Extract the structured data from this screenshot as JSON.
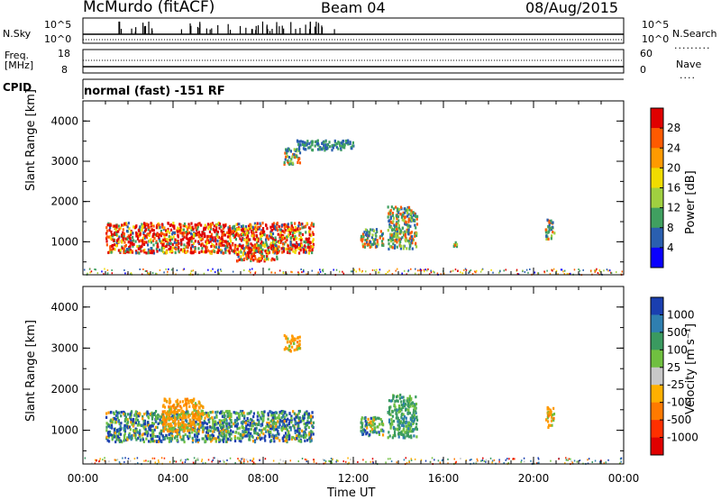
{
  "header": {
    "station": "McMurdo (fitACF)",
    "beam": "Beam 04",
    "date": "08/Aug/2015"
  },
  "info_panels": {
    "nsky_label": "N.Sky",
    "nsky_ticks": [
      "10^5",
      "10^0"
    ],
    "nsearch_label": "N.Search",
    "nsearch_ticks": [
      "10^5",
      "10^0"
    ],
    "freq_label_top": "Freq.",
    "freq_label_bottom": "[MHz]",
    "freq_ticks": [
      "18",
      "8"
    ],
    "nave_label": "Nave",
    "nave_ticks": [
      "60",
      "0"
    ],
    "cpid_label": "CPID",
    "cpid_text": "normal (fast) -151 RF"
  },
  "chart_data": [
    {
      "type": "heatmap",
      "name": "power",
      "ylabel": "Slant Range [km]",
      "xlabel": "Time UT",
      "xlim_hours": [
        0,
        24
      ],
      "ylim_km": [
        180,
        4500
      ],
      "y_ticks": [
        "4000",
        "3000",
        "2000",
        "1000"
      ],
      "x_ticks": [
        "00:00",
        "04:00",
        "08:00",
        "12:00",
        "16:00",
        "20:00",
        "00:00"
      ],
      "colorbar_label": "Power [dB]",
      "colorbar_ticks": [
        "28",
        "24",
        "20",
        "16",
        "12",
        "8",
        "4"
      ],
      "colorbar_colors": [
        "#e00000",
        "#ff5a00",
        "#ff9a00",
        "#f0dc00",
        "#a0d040",
        "#40a060",
        "#2a5fb0",
        "#0a00ff"
      ],
      "patches": [
        {
          "t0": 1.0,
          "t1": 10.2,
          "r0": 750,
          "r1": 1500,
          "level": "strong"
        },
        {
          "t0": 6.8,
          "t1": 8.6,
          "r0": 550,
          "r1": 950,
          "level": "strong"
        },
        {
          "t0": 8.9,
          "t1": 9.6,
          "r0": 2950,
          "r1": 3350,
          "level": "medium"
        },
        {
          "t0": 9.4,
          "t1": 12.0,
          "r0": 3300,
          "r1": 3550,
          "level": "weak"
        },
        {
          "t0": 12.3,
          "t1": 13.3,
          "r0": 900,
          "r1": 1350,
          "level": "medium"
        },
        {
          "t0": 13.5,
          "t1": 14.8,
          "r0": 850,
          "r1": 1900,
          "level": "medium"
        },
        {
          "t0": 16.4,
          "t1": 16.6,
          "r0": 900,
          "r1": 1100,
          "level": "medium"
        },
        {
          "t0": 20.5,
          "t1": 20.9,
          "r0": 1100,
          "r1": 1600,
          "level": "medium"
        }
      ]
    },
    {
      "type": "heatmap",
      "name": "velocity",
      "ylabel": "Slant Range [km]",
      "xlabel": "Time UT",
      "xlim_hours": [
        0,
        24
      ],
      "ylim_km": [
        180,
        4500
      ],
      "y_ticks": [
        "4000",
        "3000",
        "2000",
        "1000"
      ],
      "x_ticks": [
        "00:00",
        "04:00",
        "08:00",
        "12:00",
        "16:00",
        "20:00",
        "00:00"
      ],
      "colorbar_label": "Velocity [m s⁻¹]",
      "colorbar_ticks": [
        "1000",
        "500",
        "100",
        "25",
        "-25",
        "-100",
        "-500",
        "-1000"
      ],
      "colorbar_colors": [
        "#1a3fb0",
        "#2f7fb0",
        "#3a9a60",
        "#70c040",
        "#c8c8c8",
        "#ffb000",
        "#ff7a00",
        "#ff3000",
        "#e00000"
      ],
      "patches": [
        {
          "t0": 1.0,
          "t1": 10.2,
          "r0": 750,
          "r1": 1500,
          "level": "mixed"
        },
        {
          "t0": 3.5,
          "t1": 5.3,
          "r0": 1000,
          "r1": 1800,
          "level": "negative"
        },
        {
          "t0": 8.9,
          "t1": 9.6,
          "r0": 2950,
          "r1": 3350,
          "level": "negative"
        },
        {
          "t0": 12.3,
          "t1": 13.3,
          "r0": 900,
          "r1": 1350,
          "level": "mixed"
        },
        {
          "t0": 13.5,
          "t1": 14.8,
          "r0": 850,
          "r1": 1900,
          "level": "positive"
        },
        {
          "t0": 20.5,
          "t1": 20.9,
          "r0": 1100,
          "r1": 1600,
          "level": "negative"
        }
      ]
    }
  ]
}
